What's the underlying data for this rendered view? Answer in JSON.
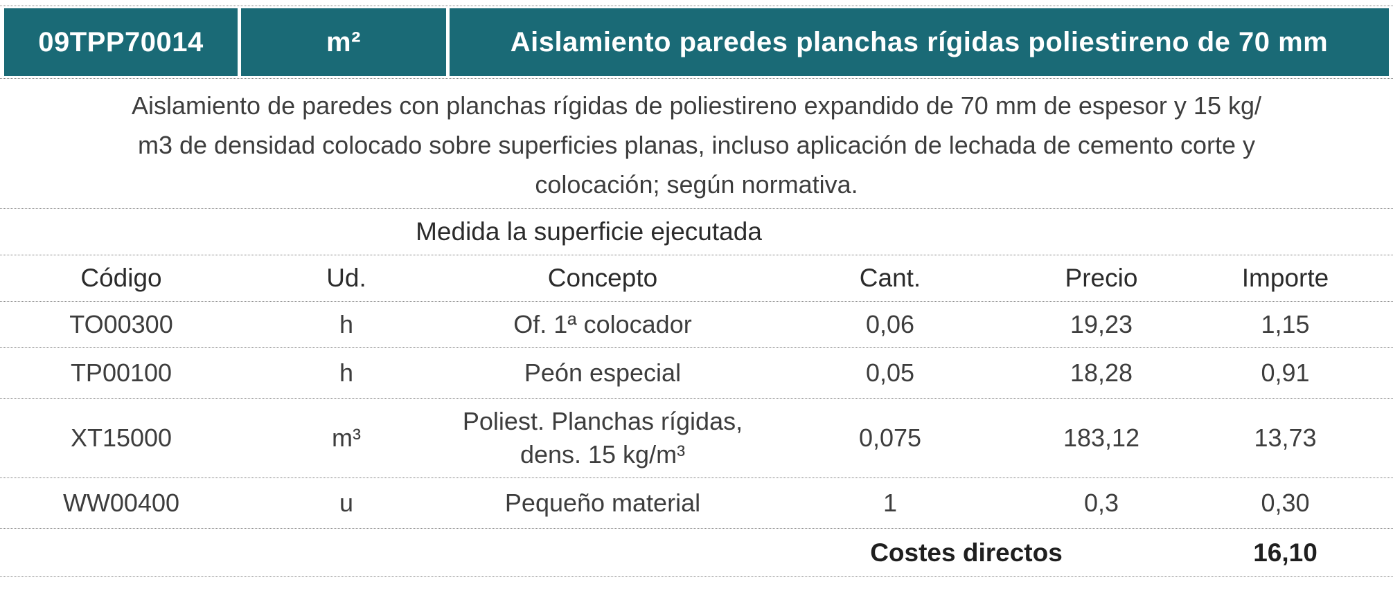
{
  "header": {
    "code": "09TPP70014",
    "unit": "m²",
    "title": "Aislamiento paredes planchas rígidas poliestireno de 70 mm"
  },
  "description": "Aislamiento de paredes con planchas rígidas de poliestireno expandido de 70 mm de espesor y 15 kg/\nm3 de densidad colocado sobre superficies planas, incluso aplicación de lechada de cemento corte y\ncolocación; según normativa.",
  "measurement_note": "Medida la superficie ejecutada",
  "table": {
    "columns": [
      "Código",
      "Ud.",
      "Concepto",
      "Cant.",
      "Precio",
      "Importe"
    ],
    "rows": [
      {
        "codigo": "TO00300",
        "ud": "h",
        "concepto": "Of. 1ª colocador",
        "cant": "0,06",
        "precio": "19,23",
        "importe": "1,15"
      },
      {
        "codigo": "TP00100",
        "ud": "h",
        "concepto": "Peón especial",
        "cant": "0,05",
        "precio": "18,28",
        "importe": "0,91"
      },
      {
        "codigo": "XT15000",
        "ud": "m³",
        "concepto": "Poliest. Planchas rígidas,\ndens. 15 kg/m³",
        "cant": "0,075",
        "precio": "183,12",
        "importe": "13,73"
      },
      {
        "codigo": "WW00400",
        "ud": "u",
        "concepto": "Pequeño material",
        "cant": "1",
        "precio": "0,3",
        "importe": "0,30"
      }
    ],
    "footer": {
      "label": "Costes directos",
      "total": "16,10"
    }
  },
  "colors": {
    "accent_teal": "#1a6a76",
    "dotted_border": "#7d7d7d"
  }
}
